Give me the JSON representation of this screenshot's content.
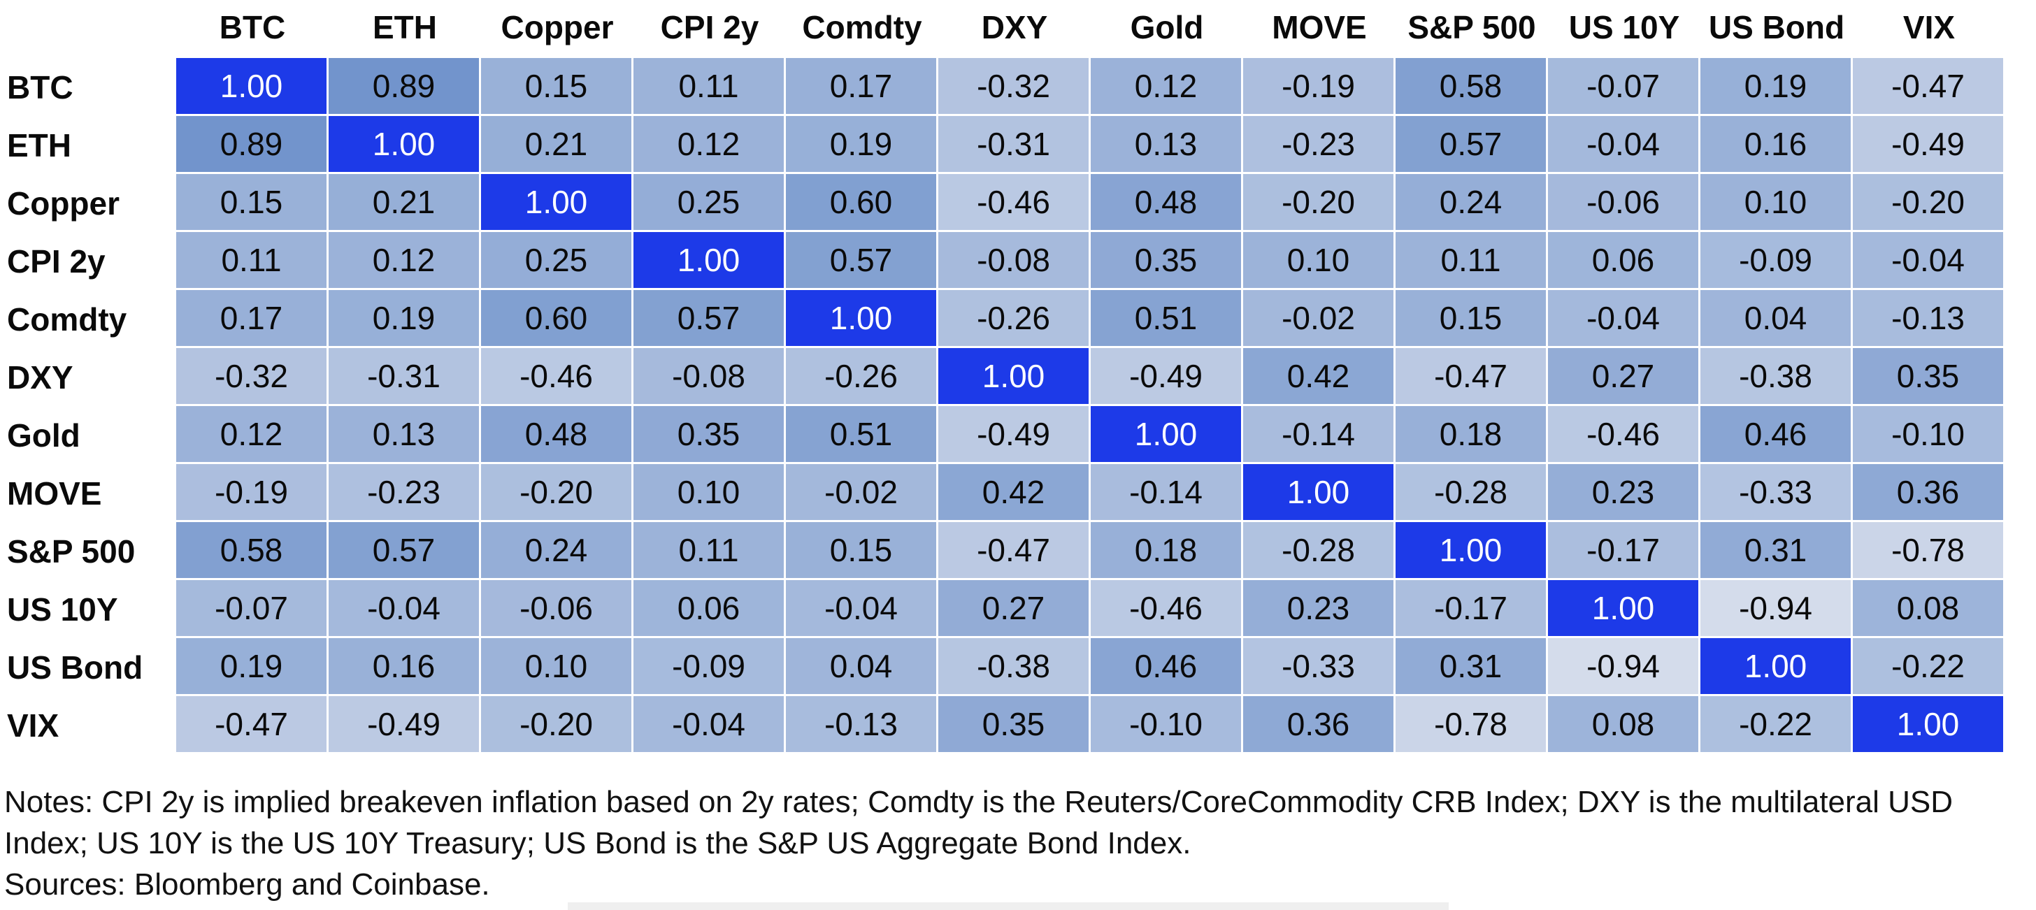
{
  "chart_data": {
    "type": "heatmap",
    "title": "",
    "categories": [
      "BTC",
      "ETH",
      "Copper",
      "CPI 2y",
      "Comdty",
      "DXY",
      "Gold",
      "MOVE",
      "S&P 500",
      "US 10Y",
      "US Bond",
      "VIX"
    ],
    "rows": [
      {
        "label": "BTC",
        "values": [
          1.0,
          0.89,
          0.15,
          0.11,
          0.17,
          -0.32,
          0.12,
          -0.19,
          0.58,
          -0.07,
          0.19,
          -0.47
        ]
      },
      {
        "label": "ETH",
        "values": [
          0.89,
          1.0,
          0.21,
          0.12,
          0.19,
          -0.31,
          0.13,
          -0.23,
          0.57,
          -0.04,
          0.16,
          -0.49
        ]
      },
      {
        "label": "Copper",
        "values": [
          0.15,
          0.21,
          1.0,
          0.25,
          0.6,
          -0.46,
          0.48,
          -0.2,
          0.24,
          -0.06,
          0.1,
          -0.2
        ]
      },
      {
        "label": "CPI 2y",
        "values": [
          0.11,
          0.12,
          0.25,
          1.0,
          0.57,
          -0.08,
          0.35,
          0.1,
          0.11,
          0.06,
          -0.09,
          -0.04
        ]
      },
      {
        "label": "Comdty",
        "values": [
          0.17,
          0.19,
          0.6,
          0.57,
          1.0,
          -0.26,
          0.51,
          -0.02,
          0.15,
          -0.04,
          0.04,
          -0.13
        ]
      },
      {
        "label": "DXY",
        "values": [
          -0.32,
          -0.31,
          -0.46,
          -0.08,
          -0.26,
          1.0,
          -0.49,
          0.42,
          -0.47,
          0.27,
          -0.38,
          0.35
        ]
      },
      {
        "label": "Gold",
        "values": [
          0.12,
          0.13,
          0.48,
          0.35,
          0.51,
          -0.49,
          1.0,
          -0.14,
          0.18,
          -0.46,
          0.46,
          -0.1
        ]
      },
      {
        "label": "MOVE",
        "values": [
          -0.19,
          -0.23,
          -0.2,
          0.1,
          -0.02,
          0.42,
          -0.14,
          1.0,
          -0.28,
          0.23,
          -0.33,
          0.36
        ]
      },
      {
        "label": "S&P 500",
        "values": [
          0.58,
          0.57,
          0.24,
          0.11,
          0.15,
          -0.47,
          0.18,
          -0.28,
          1.0,
          -0.17,
          0.31,
          -0.78
        ]
      },
      {
        "label": "US 10Y",
        "values": [
          -0.07,
          -0.04,
          -0.06,
          0.06,
          -0.04,
          0.27,
          -0.46,
          0.23,
          -0.17,
          1.0,
          -0.94,
          0.08
        ]
      },
      {
        "label": "US Bond",
        "values": [
          0.19,
          0.16,
          0.1,
          -0.09,
          0.04,
          -0.38,
          0.46,
          -0.33,
          0.31,
          -0.94,
          1.0,
          -0.22
        ]
      },
      {
        "label": "VIX",
        "values": [
          -0.47,
          -0.49,
          -0.2,
          -0.04,
          -0.13,
          0.35,
          -0.1,
          0.36,
          -0.78,
          0.08,
          -0.22,
          1.0
        ]
      }
    ],
    "value_format": "2dp",
    "value_range": [
      -1,
      1
    ],
    "colors": {
      "scale_min": "#d7deec",
      "scale_max": "#6c90ca",
      "diagonal": "#1d3ae8",
      "diagonal_text": "#ffffff",
      "cell_text": "#0a0a0a",
      "grid_line": "#ffffff"
    },
    "layout_hints": {
      "legend": "none",
      "grid": "thin white separators between cells",
      "header_row": "bold, white background",
      "label_column": "bold, white background, left-aligned"
    }
  },
  "notes": {
    "body": "Notes: CPI 2y is implied breakeven inflation based on 2y rates; Comdty is the Reuters/CoreCommodity CRB Index; DXY is the multilateral USD Index; US 10Y is the US 10Y Treasury; US Bond is the S&P US Aggregate Bond Index.",
    "sources": "Sources: Bloomberg and Coinbase."
  }
}
